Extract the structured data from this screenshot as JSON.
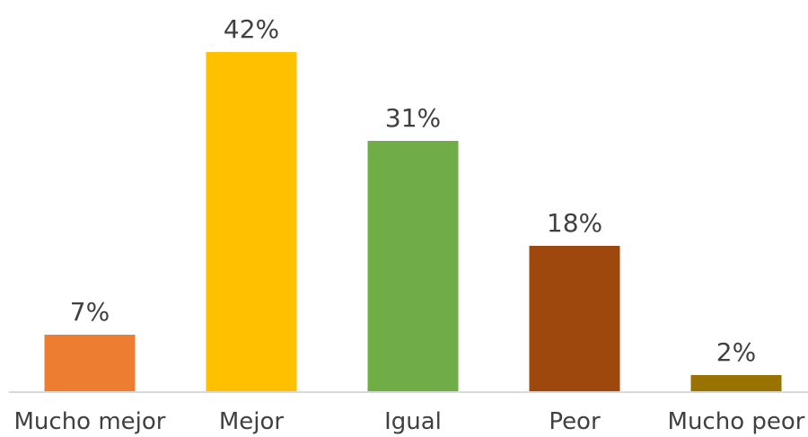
{
  "chart_data": {
    "type": "bar",
    "categories": [
      "Mucho mejor",
      "Mejor",
      "Igual",
      "Peor",
      "Mucho peor"
    ],
    "values": [
      7,
      42,
      31,
      18,
      2
    ],
    "value_labels": [
      "7%",
      "42%",
      "31%",
      "18%",
      "2%"
    ],
    "unit": "%",
    "colors": [
      "#ED7D31",
      "#FFC000",
      "#70AD47",
      "#9E480E",
      "#997300"
    ],
    "title": "",
    "xlabel": "",
    "ylabel": "",
    "ylim": [
      0,
      42
    ],
    "grid": false,
    "legend": "none"
  }
}
